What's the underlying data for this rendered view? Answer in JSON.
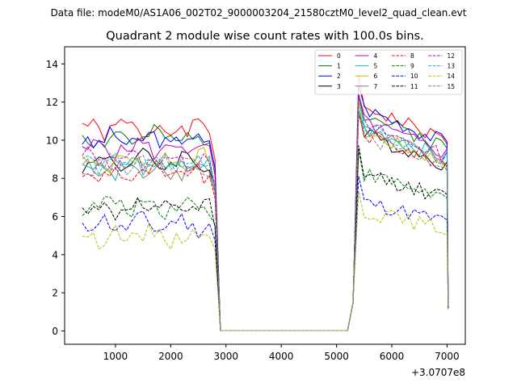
{
  "figure": {
    "suptitle": "Data file: modeM0/AS1A06_002T02_9000003204_21580cztM0_level2_quad_clean.evt",
    "offset_label": "+3.0707e8"
  },
  "chart_data": {
    "type": "line",
    "title": "Quadrant 2 module wise count rates with 100.0s bins.",
    "xlabel": "",
    "ylabel": "",
    "xlim": [
      80,
      7330
    ],
    "ylim": [
      -0.7,
      14.9
    ],
    "x_ticks": [
      1000,
      2000,
      3000,
      4000,
      5000,
      6000,
      7000
    ],
    "y_ticks": [
      0,
      2,
      4,
      6,
      8,
      10,
      12,
      14
    ],
    "grid": false,
    "legend": {
      "placement": "top-right",
      "ncol": 4
    },
    "shape": {
      "active1_x": [
        400,
        500,
        600,
        700,
        800,
        900,
        1000,
        1100,
        1200,
        1300,
        1400,
        1500,
        1600,
        1700,
        1800,
        1900,
        2000,
        2100,
        2200,
        2300,
        2400,
        2500,
        2600,
        2700,
        2800
      ],
      "gap_x": [
        2900,
        3000,
        3100,
        3200,
        3300,
        3400,
        3500,
        3600,
        3700,
        3800,
        3900,
        4000,
        4100,
        4200,
        4300,
        4400,
        4500,
        4600,
        4700,
        4800,
        4900,
        5000,
        5100,
        5200
      ],
      "active2_x": [
        5300,
        5400,
        5500,
        5600,
        5700,
        5800,
        5900,
        6000,
        6100,
        6200,
        6300,
        6400,
        6500,
        6600,
        6700,
        6800,
        6900,
        7000
      ],
      "end_x": 7020
    },
    "series": [
      {
        "name": "0",
        "color": "#ff0000",
        "dash": "solid",
        "level1": 10.6,
        "level2": 12.0,
        "end": 1.3,
        "seed": 1
      },
      {
        "name": "1",
        "color": "#008000",
        "dash": "solid",
        "level1": 10.1,
        "level2": 11.6,
        "end": 1.5,
        "seed": 2
      },
      {
        "name": "2",
        "color": "#0000ff",
        "dash": "solid",
        "level1": 10.0,
        "level2": 11.9,
        "end": 1.6,
        "seed": 3
      },
      {
        "name": "3",
        "color": "#000000",
        "dash": "solid",
        "level1": 8.9,
        "level2": 10.5,
        "end": 1.2,
        "seed": 4
      },
      {
        "name": "4",
        "color": "#bf00bf",
        "dash": "solid",
        "level1": 9.6,
        "level2": 11.2,
        "end": 1.3,
        "seed": 5
      },
      {
        "name": "5",
        "color": "#00bfbf",
        "dash": "solid",
        "level1": 8.6,
        "level2": 10.9,
        "end": 1.4,
        "seed": 6
      },
      {
        "name": "6",
        "color": "#bfbf00",
        "dash": "solid",
        "level1": 8.9,
        "level2": 10.6,
        "end": 1.2,
        "seed": 7
      },
      {
        "name": "7",
        "color": "#808080",
        "dash": "solid",
        "level1": 8.5,
        "level2": 10.7,
        "end": 1.3,
        "seed": 8
      },
      {
        "name": "8",
        "color": "#ff0000",
        "dash": "dashed",
        "level1": 8.2,
        "level2": 10.5,
        "end": 1.3,
        "seed": 9
      },
      {
        "name": "9",
        "color": "#008000",
        "dash": "dashed",
        "level1": 6.6,
        "level2": 8.4,
        "end": 1.2,
        "seed": 10
      },
      {
        "name": "10",
        "color": "#0000ff",
        "dash": "dashed",
        "level1": 5.6,
        "level2": 6.9,
        "end": 1.2,
        "seed": 11
      },
      {
        "name": "11",
        "color": "#000000",
        "dash": "dashed",
        "level1": 6.4,
        "level2": 8.4,
        "end": 1.2,
        "seed": 12
      },
      {
        "name": "12",
        "color": "#bf00bf",
        "dash": "dashed",
        "level1": 9.0,
        "level2": 11.0,
        "end": 1.3,
        "seed": 13
      },
      {
        "name": "13",
        "color": "#00bfbf",
        "dash": "dashed",
        "level1": 8.8,
        "level2": 10.8,
        "end": 1.3,
        "seed": 14
      },
      {
        "name": "14",
        "color": "#bfbf00",
        "dash": "dashed",
        "level1": 5.0,
        "level2": 6.4,
        "end": 1.1,
        "seed": 15
      },
      {
        "name": "15",
        "color": "#808080",
        "dash": "dashed",
        "level1": 8.7,
        "level2": 10.4,
        "end": 1.3,
        "seed": 16
      }
    ]
  }
}
